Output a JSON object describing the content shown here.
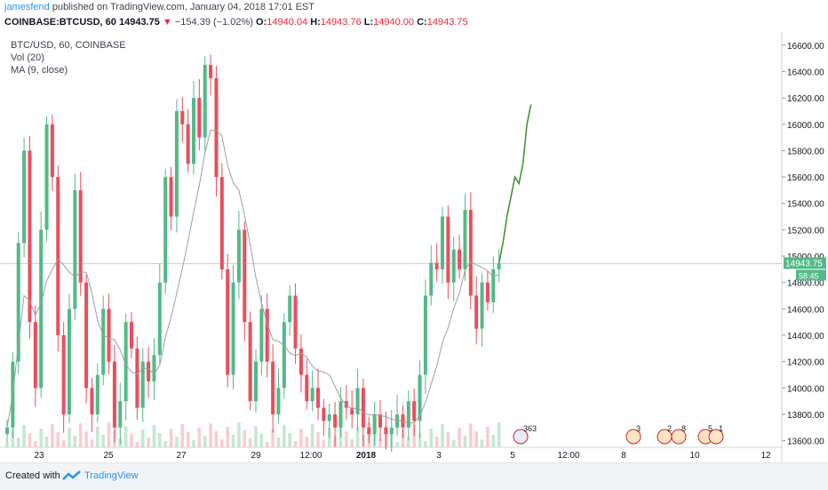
{
  "header": {
    "author": "jamesfend",
    "published_text": "published on TradingView.com, January 04, 2018 17:01 EST",
    "symbol": "COINBASE:BTCUSD, 60",
    "last": "14943.75",
    "change_arrow": "▼",
    "change": "−154.39 (−1.02%)",
    "o_label": "O:",
    "o": "14940.04",
    "h_label": "H:",
    "h": "14943.76",
    "l_label": "L:",
    "l": "14940.00",
    "c_label": "C:",
    "c": "14943.75"
  },
  "legend": {
    "title": "BTC/USD, 60, COINBASE",
    "vol": "Vol (20)",
    "ma": "MA (9, close)"
  },
  "price_tag": {
    "value": "14943.75",
    "time": "58:45",
    "value_num": 14943.75
  },
  "footer": {
    "created": "Created with",
    "brand": "TradingView"
  },
  "colors": {
    "up": "#53b987",
    "down": "#eb4d5c",
    "projection": "#3a8e2b",
    "price_tag": "#53b987"
  },
  "chart_data": {
    "type": "candlestick",
    "y_ticks": [
      "16600.00",
      "16400.00",
      "16200.00",
      "16000.00",
      "15800.00",
      "15600.00",
      "15400.00",
      "15200.00",
      "15000.00",
      "14800.00",
      "14600.00",
      "14400.00",
      "14200.00",
      "14000.00",
      "13800.00",
      "13600.00"
    ],
    "ylim": [
      13550,
      16700
    ],
    "x_ticks": [
      "23",
      "25",
      "27",
      "29",
      "12:00",
      "2018",
      "3",
      "5",
      "12:00",
      "8",
      "10",
      "12"
    ],
    "close_series": [
      13700,
      14200,
      15100,
      15800,
      14500,
      14000,
      15200,
      16000,
      15600,
      14400,
      13800,
      14600,
      15500,
      14800,
      14000,
      13800,
      14100,
      14600,
      14200,
      13700,
      13900,
      14500,
      14300,
      13850,
      14200,
      14050,
      14250,
      14800,
      15600,
      15300,
      16100,
      16000,
      15700,
      16200,
      15900,
      16450,
      16350,
      15600,
      14900,
      14100,
      14800,
      15200,
      14500,
      13900,
      14200,
      14600,
      14200,
      13800,
      14000,
      14500,
      14700,
      14300,
      14100,
      13900,
      14000,
      13850,
      13750,
      13800,
      13700,
      13900,
      13850,
      13800,
      14000,
      13700,
      13650,
      13800,
      13700,
      13650,
      13700,
      13800,
      13700,
      13900,
      13750,
      14100,
      14700,
      14950,
      14900,
      15300,
      14800,
      15050,
      14900,
      15350,
      14700,
      14450,
      14800,
      14650,
      14900,
      14943.75
    ],
    "projection": [
      [
        14943.75,
        15100
      ],
      [
        15050,
        15300
      ],
      [
        15200,
        15450
      ],
      [
        15400,
        15600
      ],
      [
        15450,
        15550
      ],
      [
        15500,
        15700
      ],
      [
        15750,
        16000
      ],
      [
        16100,
        16150
      ]
    ],
    "event_badges": [
      "363",
      "3",
      "2",
      "8",
      "5",
      "1"
    ]
  }
}
